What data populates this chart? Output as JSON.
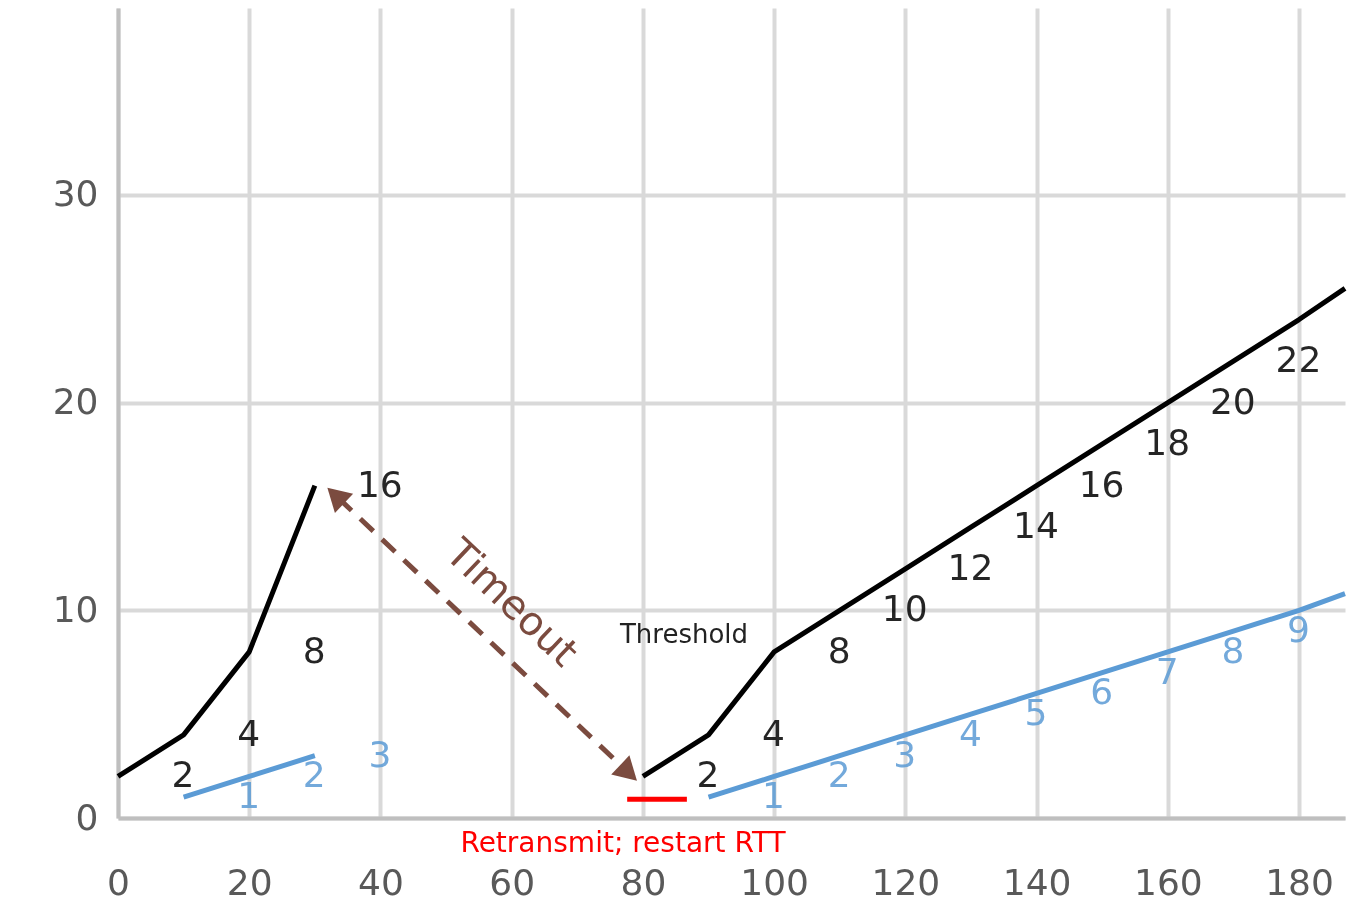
{
  "chart_data": {
    "type": "line",
    "xlim": [
      0,
      187
    ],
    "xticks": [
      0,
      20,
      40,
      60,
      80,
      100,
      120,
      140,
      160,
      180
    ],
    "ylim": [
      0,
      39
    ],
    "yticks": [
      0,
      10,
      20,
      30
    ],
    "grid": true,
    "annotations": [
      "Threshold"
    ],
    "series": [
      {
        "x": [
          0,
          10,
          20,
          30
        ],
        "values": [
          2,
          4,
          8,
          16
        ],
        "color": "#000000",
        "value_labels": [
          "2",
          "4",
          "8",
          "16"
        ]
      },
      {
        "x": [
          80,
          90,
          100,
          110,
          120,
          130,
          140,
          150,
          160,
          170,
          180,
          187
        ],
        "values": [
          2,
          4,
          8,
          10,
          12,
          14,
          16,
          18,
          20,
          22,
          24,
          25.5
        ],
        "color": "#000000",
        "value_labels": [
          "2",
          "4",
          "8",
          "10",
          "12",
          "14",
          "16",
          "18",
          "20",
          "22",
          null,
          null
        ]
      },
      {
        "x": [
          10,
          20,
          30
        ],
        "values": [
          1,
          2,
          3
        ],
        "color": "#5b9bd5",
        "value_labels": [
          "1",
          "2",
          "3"
        ]
      },
      {
        "x": [
          90,
          100,
          110,
          120,
          130,
          140,
          150,
          160,
          170,
          180,
          187
        ],
        "values": [
          1,
          2,
          3,
          4,
          5,
          6,
          7,
          8,
          9,
          10,
          10.8
        ],
        "color": "#5b9bd5",
        "value_labels": [
          "1",
          "2",
          "3",
          "4",
          "5",
          "6",
          "7",
          "8",
          "9",
          null,
          null
        ]
      },
      {
        "type": "line",
        "name": "Timeout",
        "x": [
          33.6,
          77.4
        ],
        "values": [
          15.4,
          2.3
        ],
        "color": "#7b4b3f",
        "line_style": "dashed",
        "marker": "triangle"
      },
      {
        "type": "line",
        "name": "Retransmit; restart RTT",
        "x": [
          77.6,
          86.7
        ],
        "values": [
          0.9,
          0.9
        ],
        "color": "#ff0000"
      }
    ]
  }
}
